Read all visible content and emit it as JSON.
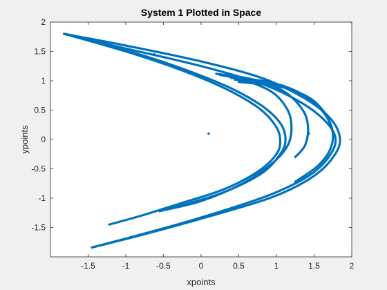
{
  "colors": {
    "series": "#0072BD",
    "axes_bg": "#ffffff",
    "figure_bg": "#f0f0f0",
    "axis": "#262626"
  },
  "chart_data": {
    "type": "scatter",
    "title": "System 1 Plotted in Space",
    "xlabel": "xpoints",
    "ylabel": "ypoints",
    "xlim": [
      -2,
      2
    ],
    "ylim": [
      -2,
      2
    ],
    "xticks": [
      -1.5,
      -1,
      -0.5,
      0,
      0.5,
      1,
      1.5,
      2
    ],
    "yticks": [
      -1.5,
      -1,
      -0.5,
      0,
      0.5,
      1,
      1.5,
      2
    ],
    "xtick_labels": [
      "-1.5",
      "-1",
      "-0.5",
      "0",
      "0.5",
      "1",
      "1.5",
      "2"
    ],
    "ytick_labels": [
      "-1.5",
      "-1",
      "-0.5",
      "0",
      "0.5",
      "1",
      "1.5",
      "2"
    ],
    "grid": false,
    "box": true,
    "series": [
      {
        "curves": [
          [
            [
              -1.82,
              1.8
            ],
            [
              -1.0,
              1.55
            ],
            [
              0.0,
              1.25
            ],
            [
              0.8,
              0.95
            ],
            [
              1.3,
              0.65
            ],
            [
              1.62,
              0.35
            ],
            [
              1.78,
              0.05
            ],
            [
              1.72,
              -0.25
            ],
            [
              1.45,
              -0.6
            ],
            [
              0.9,
              -0.95
            ],
            [
              0.0,
              -1.33
            ],
            [
              -0.8,
              -1.62
            ],
            [
              -1.45,
              -1.84
            ]
          ],
          [
            [
              -1.82,
              1.8
            ],
            [
              -1.0,
              1.6
            ],
            [
              0.0,
              1.33
            ],
            [
              0.8,
              1.05
            ],
            [
              1.35,
              0.72
            ],
            [
              1.7,
              0.38
            ],
            [
              1.84,
              0.05
            ],
            [
              1.78,
              -0.25
            ],
            [
              1.5,
              -0.62
            ],
            [
              0.95,
              -0.98
            ],
            [
              0.0,
              -1.35
            ],
            [
              -0.8,
              -1.63
            ],
            [
              -1.45,
              -1.84
            ]
          ],
          [
            [
              -1.82,
              1.8
            ],
            [
              -1.0,
              1.5
            ],
            [
              -0.3,
              1.2
            ],
            [
              0.3,
              0.88
            ],
            [
              0.75,
              0.55
            ],
            [
              0.98,
              0.25
            ],
            [
              1.05,
              0.0
            ],
            [
              1.0,
              -0.25
            ],
            [
              0.75,
              -0.55
            ],
            [
              0.3,
              -0.85
            ],
            [
              -0.3,
              -1.1
            ],
            [
              -0.8,
              -1.3
            ],
            [
              -1.22,
              -1.45
            ]
          ],
          [
            [
              -1.82,
              1.8
            ],
            [
              -1.0,
              1.52
            ],
            [
              -0.3,
              1.23
            ],
            [
              0.35,
              0.9
            ],
            [
              0.8,
              0.58
            ],
            [
              1.05,
              0.28
            ],
            [
              1.12,
              0.0
            ],
            [
              1.05,
              -0.25
            ],
            [
              0.8,
              -0.58
            ],
            [
              0.3,
              -0.9
            ],
            [
              -0.2,
              -1.1
            ],
            [
              -0.55,
              -1.22
            ]
          ],
          [
            [
              0.25,
              1.1
            ],
            [
              0.6,
              1.0
            ],
            [
              0.95,
              0.8
            ],
            [
              1.15,
              0.5
            ],
            [
              1.2,
              0.2
            ],
            [
              1.15,
              -0.1
            ],
            [
              0.95,
              -0.4
            ],
            [
              0.55,
              -0.75
            ],
            [
              0.0,
              -1.05
            ],
            [
              -0.55,
              -1.22
            ]
          ],
          [
            [
              0.2,
              1.12
            ],
            [
              0.7,
              1.02
            ],
            [
              1.1,
              0.82
            ],
            [
              1.35,
              0.5
            ],
            [
              1.42,
              0.2
            ],
            [
              1.38,
              -0.1
            ],
            [
              1.25,
              -0.3
            ]
          ],
          [
            [
              0.4,
              1.05
            ],
            [
              0.9,
              0.98
            ],
            [
              1.3,
              0.8
            ],
            [
              1.6,
              0.5
            ],
            [
              1.74,
              0.18
            ],
            [
              1.72,
              -0.15
            ],
            [
              1.55,
              -0.45
            ],
            [
              1.25,
              -0.72
            ]
          ],
          [
            [
              0.45,
              1.02
            ],
            [
              1.0,
              0.92
            ],
            [
              1.4,
              0.72
            ],
            [
              1.65,
              0.42
            ],
            [
              1.75,
              0.12
            ]
          ],
          [
            [
              0.5,
              0.98
            ],
            [
              1.05,
              0.9
            ],
            [
              1.45,
              0.7
            ],
            [
              1.68,
              0.4
            ]
          ]
        ],
        "points": [
          [
            -0.62,
            1.45
          ],
          [
            0.1,
            0.1
          ],
          [
            1.43,
            0.1
          ]
        ]
      }
    ]
  }
}
